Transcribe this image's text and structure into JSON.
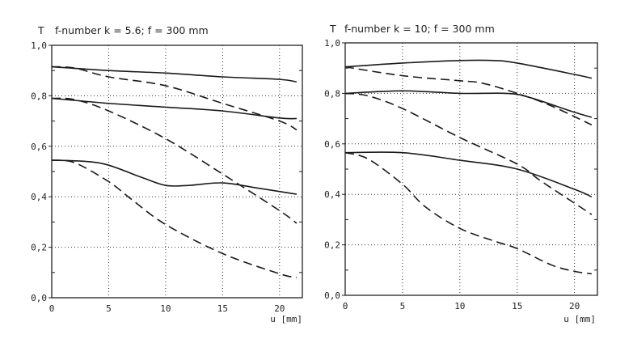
{
  "chart_data": [
    {
      "type": "line",
      "ylabel": "T",
      "title": "f-number k = 5.6; f = 300 mm",
      "xlabel": "u [mm]",
      "xlim": [
        0,
        22
      ],
      "ylim": [
        0,
        1
      ],
      "x_ticks": [
        "0",
        "5",
        "10",
        "15",
        "20"
      ],
      "y_ticks": [
        "0,0",
        "0,2",
        "0,4",
        "0,6",
        "0,8",
        "1,0"
      ],
      "grid": true,
      "series": [
        {
          "style": "solid",
          "x": [
            0,
            5,
            10,
            15,
            20,
            21.5
          ],
          "y": [
            0.915,
            0.9,
            0.89,
            0.875,
            0.865,
            0.855
          ]
        },
        {
          "style": "dashed",
          "x": [
            0,
            2,
            5,
            10,
            15,
            20,
            21.5
          ],
          "y": [
            0.915,
            0.91,
            0.875,
            0.84,
            0.77,
            0.7,
            0.665
          ]
        },
        {
          "style": "solid",
          "x": [
            0,
            5,
            10,
            15,
            20,
            21.5
          ],
          "y": [
            0.79,
            0.77,
            0.755,
            0.74,
            0.712,
            0.71
          ]
        },
        {
          "style": "dashed",
          "x": [
            0,
            2,
            5,
            10,
            15,
            20,
            21.5
          ],
          "y": [
            0.79,
            0.785,
            0.74,
            0.63,
            0.49,
            0.345,
            0.295
          ]
        },
        {
          "style": "solid",
          "x": [
            0,
            3,
            5,
            8,
            10,
            12,
            15,
            18,
            21.5
          ],
          "y": [
            0.545,
            0.54,
            0.525,
            0.475,
            0.445,
            0.445,
            0.455,
            0.435,
            0.41
          ]
        },
        {
          "style": "dashed",
          "x": [
            0,
            2,
            5,
            7,
            10,
            15,
            20,
            21.5
          ],
          "y": [
            0.545,
            0.535,
            0.46,
            0.39,
            0.29,
            0.175,
            0.095,
            0.08
          ]
        }
      ]
    },
    {
      "type": "line",
      "ylabel": "T",
      "title": "f-number k = 10; f = 300 mm",
      "xlabel": "u [mm]",
      "xlim": [
        0,
        22
      ],
      "ylim": [
        0,
        1
      ],
      "x_ticks": [
        "0",
        "5",
        "10",
        "15",
        "20"
      ],
      "y_ticks": [
        "0,0",
        "0,2",
        "0,4",
        "0,6",
        "0,8",
        "1,0"
      ],
      "grid": true,
      "series": [
        {
          "style": "solid",
          "x": [
            0,
            5,
            10,
            13,
            15,
            20,
            21.5
          ],
          "y": [
            0.905,
            0.92,
            0.93,
            0.93,
            0.92,
            0.875,
            0.86
          ]
        },
        {
          "style": "dashed",
          "x": [
            0,
            5,
            10,
            12,
            15,
            18,
            21.5
          ],
          "y": [
            0.905,
            0.87,
            0.85,
            0.84,
            0.8,
            0.75,
            0.675
          ]
        },
        {
          "style": "solid",
          "x": [
            0,
            5,
            10,
            14,
            16,
            20,
            21.5
          ],
          "y": [
            0.8,
            0.81,
            0.8,
            0.8,
            0.785,
            0.725,
            0.705
          ]
        },
        {
          "style": "dashed",
          "x": [
            0,
            2,
            5,
            10,
            15,
            17,
            20,
            21.5
          ],
          "y": [
            0.8,
            0.79,
            0.74,
            0.625,
            0.52,
            0.455,
            0.365,
            0.32
          ]
        },
        {
          "style": "solid",
          "x": [
            0,
            5,
            10,
            15,
            20,
            21.5
          ],
          "y": [
            0.565,
            0.565,
            0.535,
            0.5,
            0.42,
            0.39
          ]
        },
        {
          "style": "dashed",
          "x": [
            0,
            2,
            5,
            7,
            10,
            13,
            15,
            18,
            20,
            21.5
          ],
          "y": [
            0.565,
            0.54,
            0.44,
            0.35,
            0.265,
            0.215,
            0.185,
            0.12,
            0.095,
            0.085
          ]
        }
      ]
    }
  ]
}
